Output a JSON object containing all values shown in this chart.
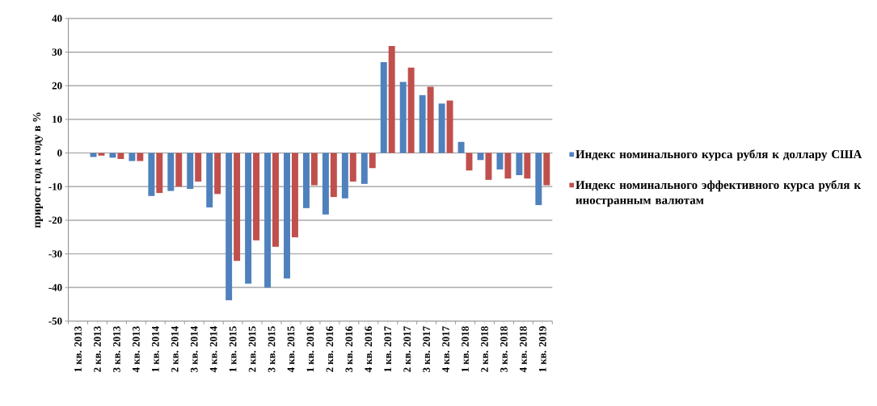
{
  "chart_data": {
    "type": "bar",
    "ylabel": "прирост год к году в %",
    "categories": [
      "1 кв. 2013",
      "2 кв. 2013",
      "3 кв. 2013",
      "4 кв. 2013",
      "1 кв. 2014",
      "2 кв. 2014",
      "3 кв. 2014",
      "4 кв. 2014",
      "1 кв. 2015",
      "2 кв. 2015",
      "3 кв. 2015",
      "4 кв. 2015",
      "1 кв. 2016",
      "2 кв. 2016",
      "3 кв. 2016",
      "4 кв. 2016",
      "1 кв. 2017",
      "2 кв. 2017",
      "3 кв. 2017",
      "4 кв. 2017",
      "1 кв. 2018",
      "2 кв. 2018",
      "3 кв. 2018",
      "4 кв. 2018",
      "1 кв. 2019"
    ],
    "series": [
      {
        "name": "Индекс номинального курса рубля к доллару США",
        "color": "#4f81bd",
        "values": [
          0,
          -1.2,
          -1.4,
          -2.4,
          -12.8,
          -11.3,
          -10.7,
          -16.2,
          -43.8,
          -38.9,
          -40.0,
          -37.3,
          -16.4,
          -18.3,
          -13.5,
          -9.2,
          27.0,
          21.1,
          17.2,
          14.7,
          3.3,
          -2.1,
          -4.9,
          -6.6,
          -15.5
        ]
      },
      {
        "name": "Индекс номинального эффективного курса рубля к иностранным валютам",
        "color": "#c0504d",
        "values": [
          0,
          -0.8,
          -1.8,
          -2.4,
          -11.9,
          -10.0,
          -8.5,
          -12.2,
          -32.1,
          -26.0,
          -27.9,
          -25.1,
          -9.6,
          -13.1,
          -8.5,
          -4.5,
          31.8,
          25.4,
          19.7,
          15.6,
          -5.2,
          -8.0,
          -7.6,
          -7.6,
          -9.6
        ]
      }
    ],
    "ylim": [
      -50,
      40
    ],
    "yticks": [
      -50,
      -40,
      -30,
      -20,
      -10,
      0,
      10,
      20,
      30,
      40
    ],
    "grid": "y",
    "legend": "right"
  }
}
